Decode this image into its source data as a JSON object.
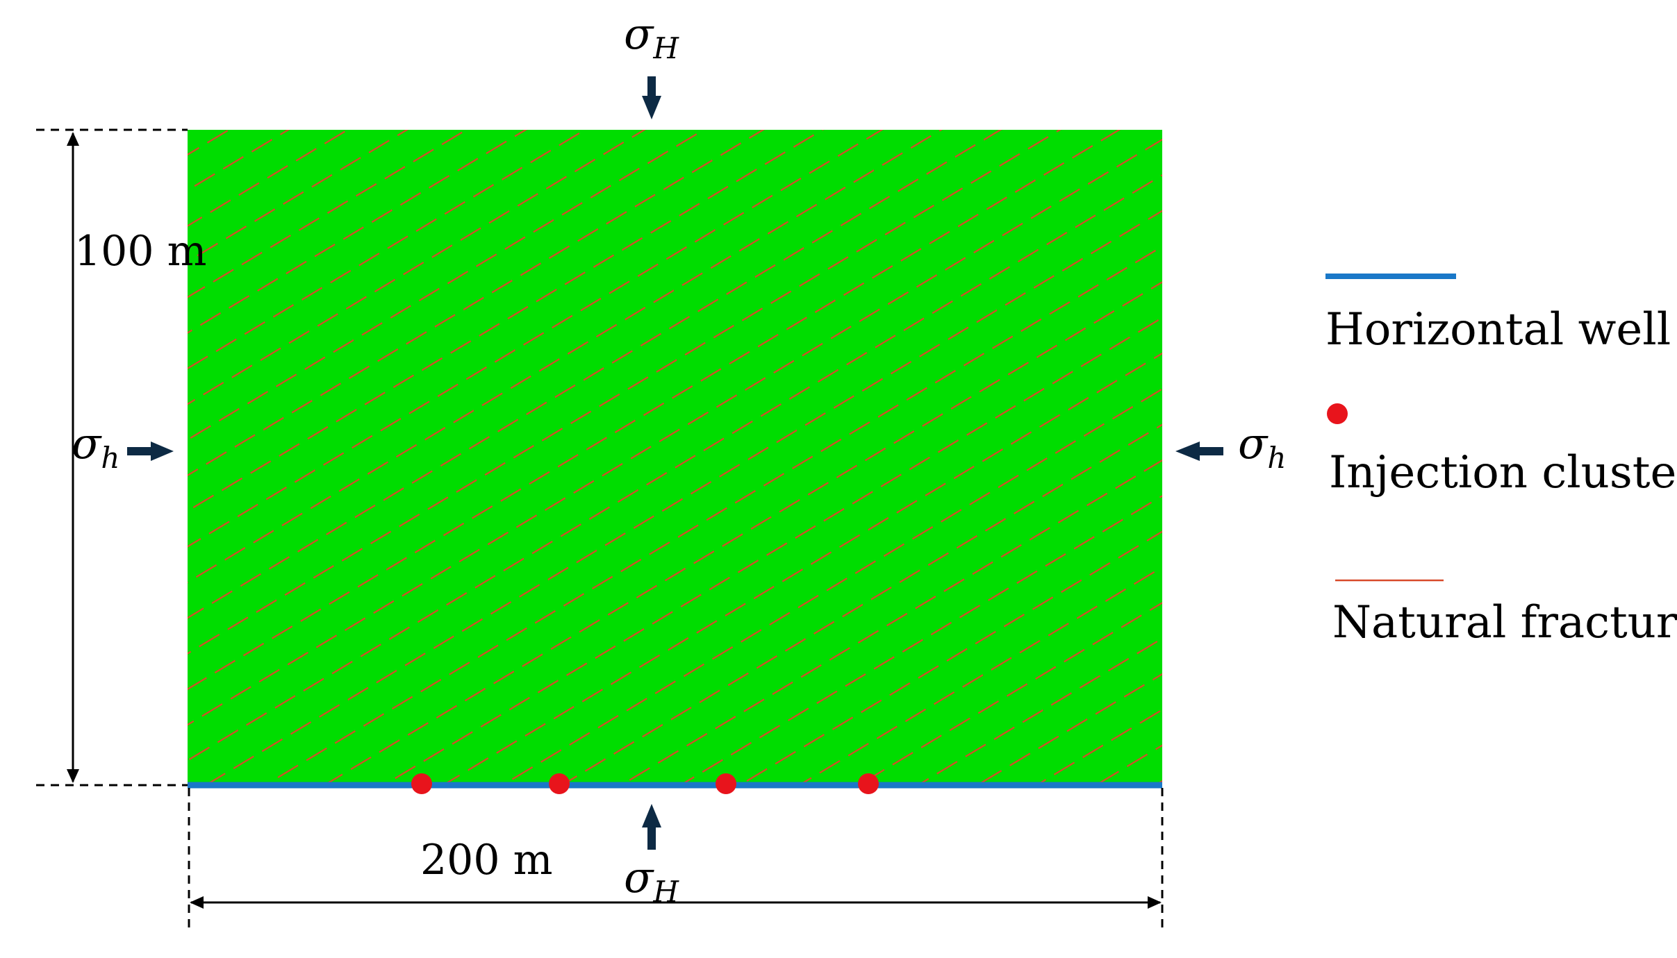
{
  "diagram": {
    "dimensions": {
      "height_label": "100 m",
      "width_label": "200 m"
    },
    "stresses": {
      "top": {
        "symbol": "σ",
        "subscript": "H"
      },
      "bottom": {
        "symbol": "σ",
        "subscript": "H"
      },
      "left": {
        "symbol": "σ",
        "subscript": "h"
      },
      "right": {
        "symbol": "σ",
        "subscript": "h"
      }
    },
    "legend": {
      "horizontal_well": "Horizontal well",
      "injection_cluster": "Injection cluster",
      "natural_fracture": "Natural fracture"
    },
    "colors": {
      "domain": "#00dd00",
      "well": "#1a78c8",
      "cluster": "#e8141c",
      "fracture": "#d84a2a",
      "arrow": "#0d2a44"
    },
    "injection_cluster_count": 4
  }
}
